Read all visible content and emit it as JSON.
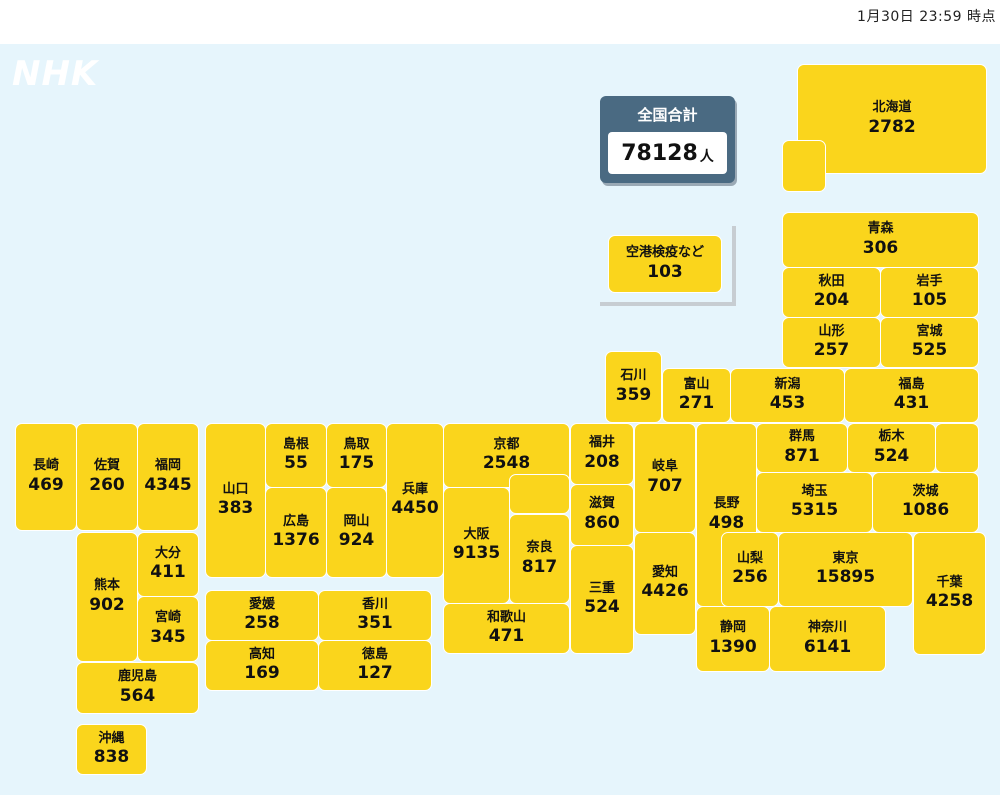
{
  "timestamp": "1月30日 23:59 時点",
  "logo": "NHK",
  "total": {
    "label": "全国合計",
    "value": "78128",
    "unit": "人"
  },
  "colors": {
    "tile": "#fad51c",
    "background": "#e6f5fc",
    "total_box": "#4a6a82"
  },
  "prefectures": {
    "hokkaido": {
      "name": "北海道",
      "value": "2782"
    },
    "aomori": {
      "name": "青森",
      "value": "306"
    },
    "akita": {
      "name": "秋田",
      "value": "204"
    },
    "iwate": {
      "name": "岩手",
      "value": "105"
    },
    "yamagata": {
      "name": "山形",
      "value": "257"
    },
    "miyagi": {
      "name": "宮城",
      "value": "525"
    },
    "ishikawa": {
      "name": "石川",
      "value": "359"
    },
    "toyama": {
      "name": "富山",
      "value": "271"
    },
    "niigata": {
      "name": "新潟",
      "value": "453"
    },
    "fukushima": {
      "name": "福島",
      "value": "431"
    },
    "nagasaki": {
      "name": "長崎",
      "value": "469"
    },
    "saga": {
      "name": "佐賀",
      "value": "260"
    },
    "fukuoka": {
      "name": "福岡",
      "value": "4345"
    },
    "yamaguchi": {
      "name": "山口",
      "value": "383"
    },
    "shimane": {
      "name": "島根",
      "value": "55"
    },
    "tottori": {
      "name": "鳥取",
      "value": "175"
    },
    "hiroshima": {
      "name": "広島",
      "value": "1376"
    },
    "okayama": {
      "name": "岡山",
      "value": "924"
    },
    "hyogo": {
      "name": "兵庫",
      "value": "4450"
    },
    "kyoto": {
      "name": "京都",
      "value": "2548"
    },
    "fukui": {
      "name": "福井",
      "value": "208"
    },
    "gifu": {
      "name": "岐阜",
      "value": "707"
    },
    "nagano": {
      "name": "長野",
      "value": "498"
    },
    "gunma": {
      "name": "群馬",
      "value": "871"
    },
    "tochigi": {
      "name": "栃木",
      "value": "524"
    },
    "saitama": {
      "name": "埼玉",
      "value": "5315"
    },
    "ibaraki": {
      "name": "茨城",
      "value": "1086"
    },
    "osaka": {
      "name": "大阪",
      "value": "9135"
    },
    "nara": {
      "name": "奈良",
      "value": "817"
    },
    "shiga": {
      "name": "滋賀",
      "value": "860"
    },
    "kumamoto": {
      "name": "熊本",
      "value": "902"
    },
    "oita": {
      "name": "大分",
      "value": "411"
    },
    "miyazaki": {
      "name": "宮崎",
      "value": "345"
    },
    "ehime": {
      "name": "愛媛",
      "value": "258"
    },
    "kagawa": {
      "name": "香川",
      "value": "351"
    },
    "kochi": {
      "name": "高知",
      "value": "169"
    },
    "tokushima": {
      "name": "徳島",
      "value": "127"
    },
    "wakayama": {
      "name": "和歌山",
      "value": "471"
    },
    "mie": {
      "name": "三重",
      "value": "524"
    },
    "aichi": {
      "name": "愛知",
      "value": "4426"
    },
    "yamanashi": {
      "name": "山梨",
      "value": "256"
    },
    "tokyo": {
      "name": "東京",
      "value": "15895"
    },
    "chiba": {
      "name": "千葉",
      "value": "4258"
    },
    "shizuoka": {
      "name": "静岡",
      "value": "1390"
    },
    "kanagawa": {
      "name": "神奈川",
      "value": "6141"
    },
    "kagoshima": {
      "name": "鹿児島",
      "value": "564"
    },
    "okinawa": {
      "name": "沖縄",
      "value": "838"
    },
    "airport": {
      "name": "空港検疫など",
      "value": "103"
    }
  }
}
